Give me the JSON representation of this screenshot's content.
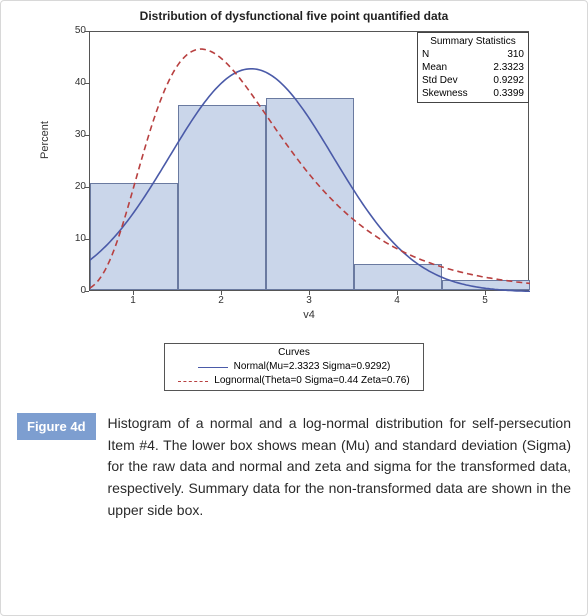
{
  "chart": {
    "type": "histogram-with-curves",
    "title": "Distribution of dysfunctional five point quantified data",
    "title_fontsize": 12,
    "xlabel": "v4",
    "ylabel": "Percent",
    "label_fontsize": 11,
    "tick_fontsize": 10,
    "xlim": [
      0.5,
      5.5
    ],
    "ylim": [
      0,
      50
    ],
    "yticks": [
      0,
      10,
      20,
      30,
      40,
      50
    ],
    "xticks": [
      1,
      2,
      3,
      4,
      5
    ],
    "plot_border_color": "#555555",
    "background_color": "#ffffff",
    "bars": {
      "edges": [
        0.5,
        1.5,
        2.5,
        3.5,
        4.5,
        5.5
      ],
      "values": [
        20.5,
        35.5,
        37.0,
        5.0,
        2.0
      ],
      "fill_color": "#cad6ea",
      "border_color": "#6a7aa0",
      "bar_width": 1.0
    },
    "curves": [
      {
        "name": "Normal",
        "label": "Normal(Mu=2.3323 Sigma=0.9292)",
        "type": "normal",
        "mu": 2.3323,
        "sigma": 0.9292,
        "percent_scale": 100,
        "color": "#4a5aa8",
        "dash": "none",
        "width": 1.6
      },
      {
        "name": "Lognormal",
        "label": "Lognormal(Theta=0 Sigma=0.44 Zeta=0.76)",
        "type": "lognormal",
        "theta": 0,
        "sigma": 0.44,
        "zeta": 0.76,
        "percent_scale": 100,
        "color": "#b84040",
        "dash": "6,4",
        "width": 1.6
      }
    ],
    "stats_box": {
      "title": "Summary Statistics",
      "rows": [
        {
          "label": "N",
          "value": "310"
        },
        {
          "label": "Mean",
          "value": "2.3323"
        },
        {
          "label": "Std Dev",
          "value": "0.9292"
        },
        {
          "label": "Skewness",
          "value": "0.3399"
        }
      ],
      "border_color": "#444444",
      "fontsize": 10
    },
    "legend": {
      "title": "Curves",
      "fontsize": 10,
      "border_color": "#555555"
    }
  },
  "figure_label": {
    "text": "Figure 4d",
    "bg_color": "#7d9ed0",
    "text_color": "#ffffff"
  },
  "caption": "Histogram of a normal and a log-normal distribution for self-persecution Item #4. The lower box shows mean (Mu) and standard deviation (Sigma) for the raw data and normal and zeta and sigma for the transformed data, respectively. Summary data for the non-transformed data are shown in the upper side box."
}
